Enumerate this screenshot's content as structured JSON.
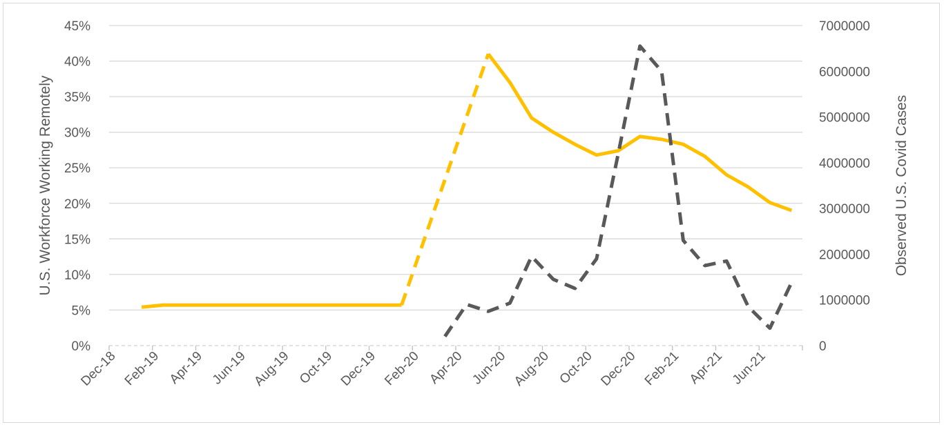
{
  "chart_data": {
    "type": "line",
    "ylabel": "U.S. Workforce Working Remotely",
    "y2label": "Observed U.S. Covid Cases",
    "ylim": [
      0,
      45
    ],
    "y2lim": [
      0,
      7000000
    ],
    "y_ticks": [
      "0%",
      "5%",
      "10%",
      "15%",
      "20%",
      "25%",
      "30%",
      "35%",
      "40%",
      "45%"
    ],
    "y2_ticks": [
      "0",
      "1000000",
      "2000000",
      "3000000",
      "4000000",
      "5000000",
      "6000000",
      "7000000"
    ],
    "x_ticks": [
      "Dec-18",
      "Feb-19",
      "Apr-19",
      "Jun-19",
      "Aug-19",
      "Oct-19",
      "Dec-19",
      "Feb-20",
      "Apr-20",
      "Jun-20",
      "Aug-20",
      "Oct-20",
      "Dec-20",
      "Feb-21",
      "Apr-21",
      "Jun-21"
    ],
    "grid": true,
    "colors": {
      "remote": "#ffc000",
      "covid": "#595959",
      "grid": "#d9d9d9",
      "axis": "#bfbfbf"
    },
    "series": [
      {
        "axis": "left",
        "style": "solid",
        "x": [
          "2019-01",
          "2019-02",
          "2019-03",
          "2019-04",
          "2019-05",
          "2019-06",
          "2019-07",
          "2019-08",
          "2019-09",
          "2019-10",
          "2019-11",
          "2019-12",
          "2020-01"
        ],
        "values": [
          5.4,
          5.7,
          5.7,
          5.7,
          5.7,
          5.7,
          5.7,
          5.7,
          5.7,
          5.7,
          5.7,
          5.7,
          5.7
        ]
      },
      {
        "axis": "left",
        "style": "dashed",
        "x": [
          "2020-01",
          "2020-05"
        ],
        "values": [
          5.7,
          41
        ]
      },
      {
        "axis": "left",
        "style": "solid",
        "x": [
          "2020-05",
          "2020-06",
          "2020-07",
          "2020-08",
          "2020-09",
          "2020-10",
          "2020-11",
          "2020-12",
          "2021-01",
          "2021-02",
          "2021-03",
          "2021-04",
          "2021-05",
          "2021-06",
          "2021-07"
        ],
        "values": [
          41,
          37,
          32,
          30,
          28.3,
          26.8,
          27.4,
          29.4,
          29,
          28.3,
          26.6,
          24,
          22.3,
          20.1,
          19
        ]
      },
      {
        "axis": "right",
        "style": "dashed",
        "x": [
          "2020-03",
          "2020-04",
          "2020-05",
          "2020-06",
          "2020-07",
          "2020-08",
          "2020-09",
          "2020-10",
          "2020-11",
          "2020-12",
          "2021-01",
          "2021-02",
          "2021-03",
          "2021-04",
          "2021-05",
          "2021-06",
          "2021-07"
        ],
        "values": [
          200000,
          900000,
          750000,
          930000,
          1950000,
          1450000,
          1250000,
          1900000,
          4200000,
          6550000,
          6000000,
          2300000,
          1750000,
          1850000,
          850000,
          380000,
          1380000
        ]
      }
    ]
  }
}
